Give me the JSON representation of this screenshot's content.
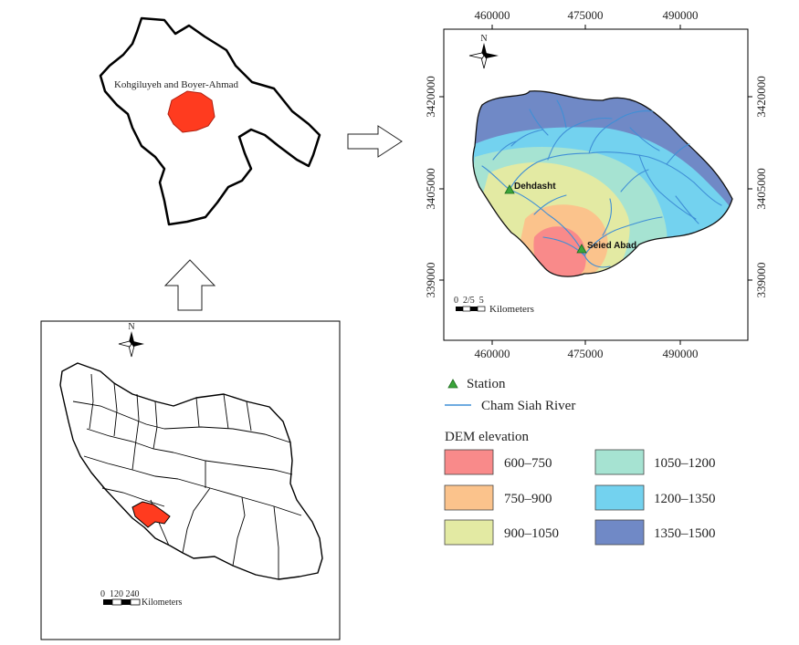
{
  "province_map": {
    "label": "Kohgiluyeh and Boyer-Ahmad"
  },
  "iran_map": {
    "north_label": "N",
    "scale_numbers": "0  120 240",
    "scale_unit": "Kilometers"
  },
  "basin_map": {
    "north_label": "N",
    "top_ticks": [
      "460000",
      "475000",
      "490000"
    ],
    "bottom_ticks": [
      "460000",
      "475000",
      "490000"
    ],
    "left_ticks": [
      "3420000",
      "3405000",
      "339000"
    ],
    "right_ticks": [
      "3420000",
      "3405000",
      "339000"
    ],
    "scale_numbers": "0  2/5  5",
    "scale_unit": "Kilometers",
    "stations": [
      {
        "name": "Dehdasht"
      },
      {
        "name": "Seied Abad"
      }
    ]
  },
  "legend": {
    "station_label": "Station",
    "river_label": "Cham Siah River",
    "dem_title": "DEM elevation",
    "classes": [
      {
        "label": "600–750",
        "color": "#f98a8a"
      },
      {
        "label": "750–900",
        "color": "#fbc38c"
      },
      {
        "label": "900–1050",
        "color": "#e3eaa3"
      },
      {
        "label": "1050–1200",
        "color": "#a6e3d2"
      },
      {
        "label": "1200–1350",
        "color": "#73d2ef"
      },
      {
        "label": "1350–1500",
        "color": "#7089c6"
      }
    ]
  },
  "colors": {
    "highlight_red": "#ff3b1f",
    "river_blue": "#3f8fd6",
    "station_green": "#3aa53a"
  }
}
